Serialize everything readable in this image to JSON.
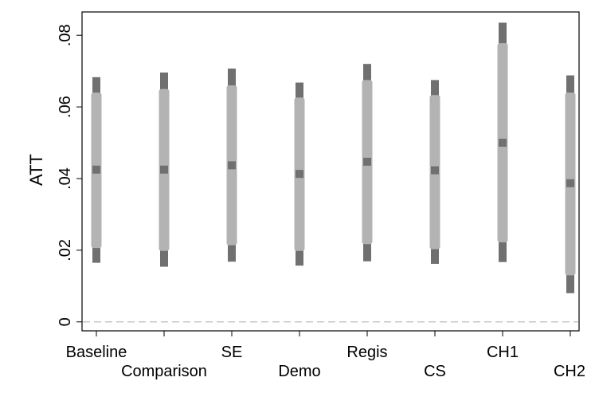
{
  "chart_data": {
    "type": "errorbar",
    "title": "",
    "xlabel": "",
    "ylabel": "ATT",
    "ylim": [
      -0.0025,
      0.0865
    ],
    "yticks": [
      0,
      0.02,
      0.04,
      0.06,
      0.08
    ],
    "ytick_labels": [
      "0",
      ".02",
      ".04",
      ".06",
      ".08"
    ],
    "reference_line": 0,
    "grid": false,
    "categories": [
      "Baseline",
      "Comparison",
      "SE",
      "Demo",
      "Regis",
      "CS",
      "CH1",
      "CH2"
    ],
    "estimates": [
      0.0425,
      0.0425,
      0.0437,
      0.0413,
      0.0447,
      0.0423,
      0.05,
      0.0387
    ],
    "ci_90": [
      [
        0.0206,
        0.064
      ],
      [
        0.0198,
        0.065
      ],
      [
        0.0214,
        0.066
      ],
      [
        0.0198,
        0.0626
      ],
      [
        0.0217,
        0.0675
      ],
      [
        0.0203,
        0.0633
      ],
      [
        0.0222,
        0.0778
      ],
      [
        0.013,
        0.064
      ]
    ],
    "ci_95": [
      [
        0.0165,
        0.0683
      ],
      [
        0.0154,
        0.0696
      ],
      [
        0.0168,
        0.0707
      ],
      [
        0.0157,
        0.0668
      ],
      [
        0.0169,
        0.072
      ],
      [
        0.0162,
        0.0675
      ],
      [
        0.0167,
        0.0835
      ],
      [
        0.008,
        0.0688
      ]
    ],
    "colors": {
      "ci_95": "#707070",
      "ci_90": "#b3b3b3",
      "estimate": "#707070",
      "reference_line": "#c8c8c8",
      "axis": "#000000"
    }
  }
}
